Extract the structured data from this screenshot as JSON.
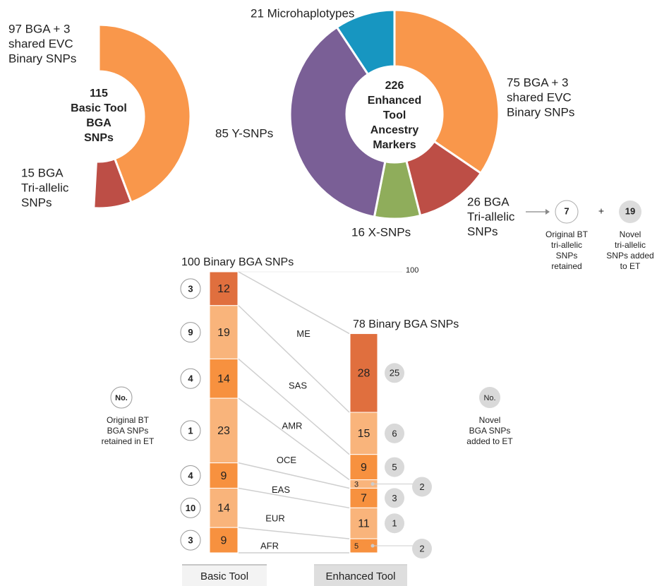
{
  "chart_data": [
    {
      "type": "donut",
      "center_value": 115,
      "center_lines": [
        "Basic Tool",
        "BGA",
        "SNPs"
      ],
      "labels": [
        [
          "97 BGA + 3",
          "shared EVC",
          "Binary SNPs"
        ],
        [
          "15 BGA",
          "Tri-allelic",
          "SNPs"
        ]
      ],
      "values": [
        100,
        15
      ],
      "colors": [
        "#f9974b",
        "#bd4e46"
      ]
    },
    {
      "type": "donut",
      "center_value": 226,
      "center_lines": [
        "Enhanced",
        "Tool",
        "Ancestry",
        "Markers"
      ],
      "labels": [
        [
          "75 BGA + 3",
          "shared EVC",
          "Binary SNPs"
        ],
        [
          "26 BGA",
          "Tri-allelic",
          "SNPs"
        ],
        [
          "16 X-SNPs"
        ],
        [
          "85 Y-SNPs"
        ],
        [
          "21 Microhaplotypes"
        ]
      ],
      "values": [
        78,
        26,
        16,
        85,
        21
      ],
      "colors": [
        "#f9974b",
        "#bd4e46",
        "#8fad5b",
        "#7a5f96",
        "#1796c1"
      ],
      "breakdown": {
        "operator": "+",
        "items": [
          {
            "value": 7,
            "lines": [
              "Original BT",
              "tri-allelic",
              "SNPs",
              "retained"
            ]
          },
          {
            "value": 19,
            "lines": [
              "Novel",
              "tri-allelic",
              "SNPs added",
              "to ET"
            ]
          }
        ]
      }
    },
    {
      "type": "stacked-comparison",
      "categories": [
        "ME",
        "SAS",
        "AMR",
        "OCE",
        "EAS",
        "EUR",
        "AFR"
      ],
      "ylim": [
        0,
        100
      ],
      "yticks": [
        100
      ],
      "bars": [
        {
          "name": "Basic Tool",
          "title": "100 Binary BGA SNPs",
          "values": [
            12,
            19,
            14,
            23,
            9,
            14,
            9
          ],
          "colors": [
            "#e06f3e",
            "#f9b47b",
            "#f7913f",
            "#f9b47b",
            "#f7913f",
            "#f9b47b",
            "#f7913f"
          ],
          "counts": [
            3,
            9,
            4,
            1,
            4,
            10,
            3
          ]
        },
        {
          "name": "Enhanced Tool",
          "title": "78 Binary BGA SNPs",
          "values": [
            28,
            15,
            9,
            3,
            7,
            11,
            5
          ],
          "colors": [
            "#e06f3e",
            "#f9b47b",
            "#f7913f",
            "#f9b47b",
            "#f7913f",
            "#f9b47b",
            "#f7913f"
          ],
          "counts": [
            25,
            6,
            5,
            2,
            3,
            1,
            2
          ]
        }
      ],
      "legend": [
        {
          "symbol": "No.",
          "lines": [
            "Original BT",
            "BGA SNPs",
            "retained in ET"
          ]
        },
        {
          "symbol": "No.",
          "lines": [
            "Novel",
            "BGA SNPs",
            "added to ET"
          ]
        }
      ]
    }
  ]
}
